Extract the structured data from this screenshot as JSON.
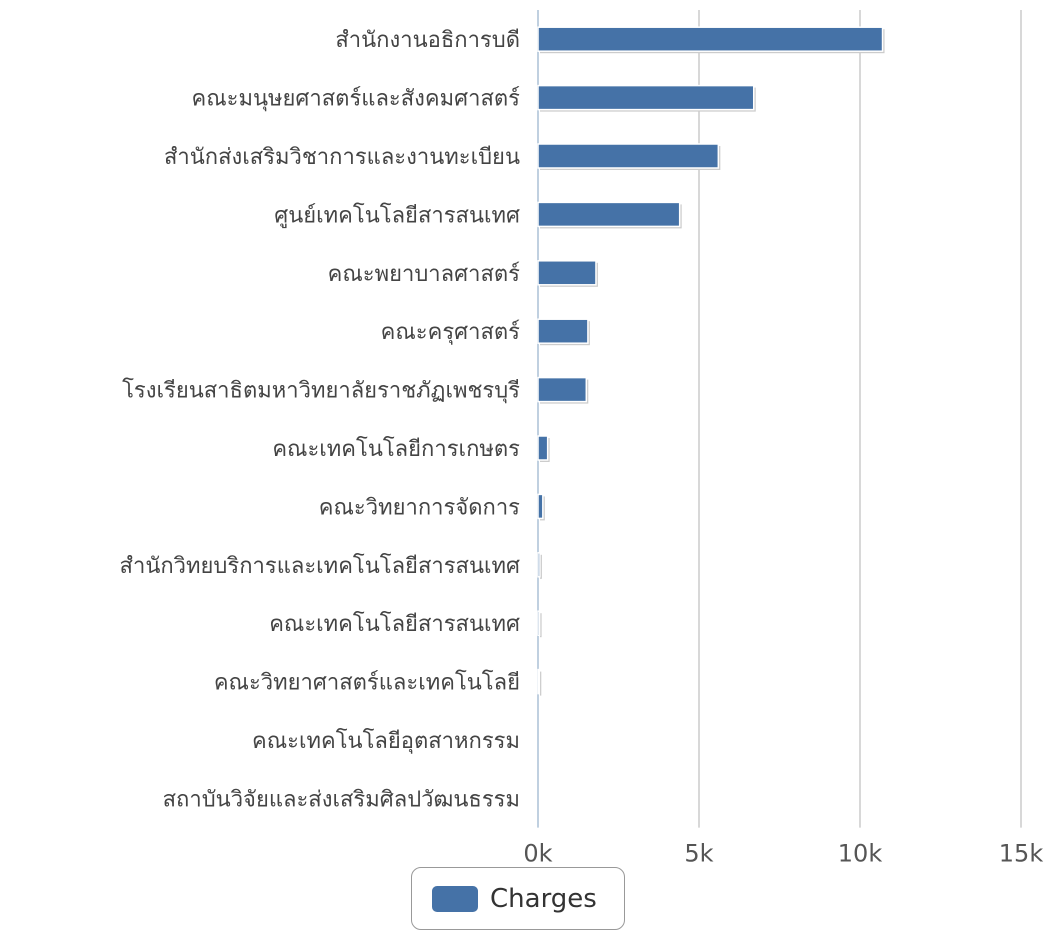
{
  "chart_data": {
    "type": "bar",
    "orientation": "horizontal",
    "categories": [
      "สำนักงานอธิการบดี",
      "คณะมนุษยศาสตร์และสังคมศาสตร์",
      "สำนักส่งเสริมวิชาการและงานทะเบียน",
      "ศูนย์เทคโนโลยีสารสนเทศ",
      "คณะพยาบาลศาสตร์",
      "คณะครุศาสตร์",
      "โรงเรียนสาธิตมหาวิทยาลัยราชภัฏเพชรบุรี",
      "คณะเทคโนโลยีการเกษตร",
      "คณะวิทยาการจัดการ",
      "สำนักวิทยบริการและเทคโนโลยีสารสนเทศ",
      "คณะเทคโนโลยีสารสนเทศ",
      "คณะวิทยาศาสตร์และเทคโนโลยี",
      "คณะเทคโนโลยีอุตสาหกรรม",
      "สถาบันวิจัยและส่งเสริมศิลปวัฒนธรรม"
    ],
    "series": [
      {
        "name": "Charges",
        "color": "#4572a7",
        "values": [
          10700,
          6700,
          5600,
          4400,
          1800,
          1550,
          1500,
          300,
          150,
          60,
          50,
          40,
          0,
          0
        ]
      }
    ],
    "xlim": [
      0,
      15000
    ],
    "x_ticks": [
      0,
      5000,
      10000,
      15000
    ],
    "x_tick_labels": [
      "0k",
      "5k",
      "10k",
      "15k"
    ],
    "grid": "vertical",
    "legend_position": "bottom-center",
    "title": "",
    "xlabel": "",
    "ylabel": ""
  },
  "legend": {
    "label": "Charges",
    "color": "#4572a7"
  }
}
